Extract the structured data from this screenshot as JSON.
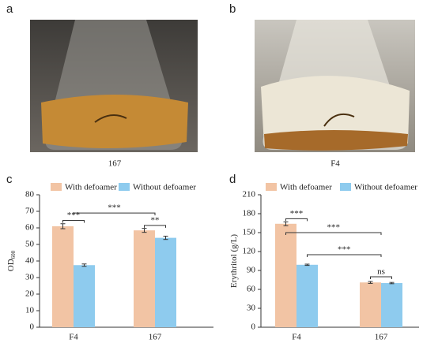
{
  "panels": {
    "labels": [
      "a",
      "b",
      "c",
      "d"
    ],
    "photo_captions": [
      "167",
      "F4"
    ]
  },
  "chart_data": [
    {
      "type": "bar",
      "y_label": {
        "main": "OD",
        "sub": "600"
      },
      "categories": [
        "F4",
        "167"
      ],
      "series": [
        {
          "name": "With defoamer",
          "color": "#f2c4a4",
          "values": [
            61,
            58.5
          ],
          "errors": [
            1.5,
            1.2
          ]
        },
        {
          "name": "Without defoamer",
          "color": "#8ecbee",
          "values": [
            37.5,
            54
          ],
          "errors": [
            0.7,
            1
          ]
        }
      ],
      "ylim": [
        0,
        80
      ],
      "yticks": [
        0,
        10,
        20,
        30,
        40,
        50,
        60,
        70,
        80
      ],
      "annotations": [
        "***",
        "***",
        "**"
      ]
    },
    {
      "type": "bar",
      "y_label": {
        "main": "Erythritol (g/L)"
      },
      "categories": [
        "F4",
        "167"
      ],
      "series": [
        {
          "name": "With defoamer",
          "color": "#f2c4a4",
          "values": [
            164,
            71
          ],
          "errors": [
            3,
            1.5
          ]
        },
        {
          "name": "Without defoamer",
          "color": "#8ecbee",
          "values": [
            99,
            70
          ],
          "errors": [
            1,
            1
          ]
        }
      ],
      "ylim": [
        0,
        210
      ],
      "yticks": [
        0,
        30,
        60,
        90,
        120,
        150,
        180,
        210
      ],
      "annotations": [
        "***",
        "***",
        "***",
        "ns"
      ]
    }
  ]
}
